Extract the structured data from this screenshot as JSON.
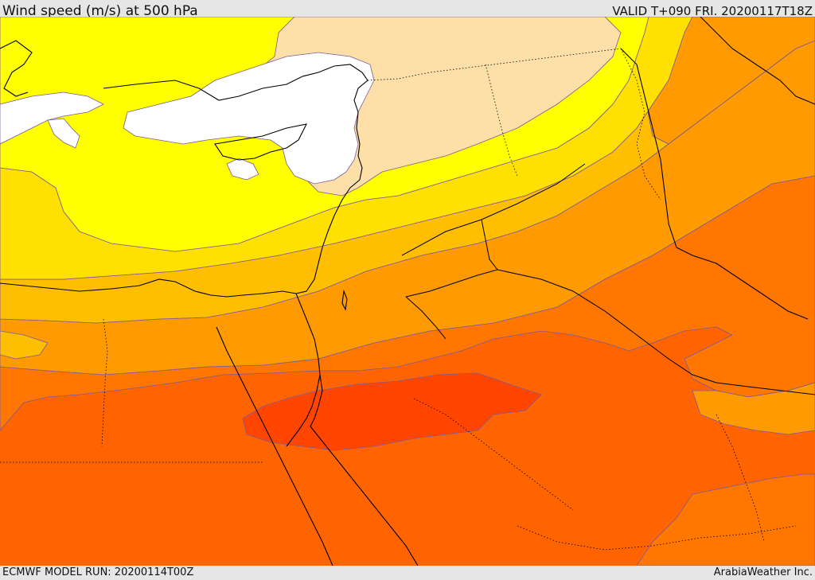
{
  "header": {
    "title": "Wind speed (m/s) at 500 hPa",
    "valid_time": "VALID T+090 FRI. 20200117T18Z"
  },
  "footer": {
    "model_run": "ECMWF MODEL RUN: 20200114T00Z",
    "credit": "ArabiaWeather Inc."
  },
  "map": {
    "field": "wind speed 500 hPa",
    "shading_colors": [
      "#ffffff",
      "#ffdfa8",
      "#ffff00",
      "#ffe000",
      "#ffbe00",
      "#ff9b00",
      "#ff7700",
      "#ff6400",
      "#ff4500"
    ]
  }
}
